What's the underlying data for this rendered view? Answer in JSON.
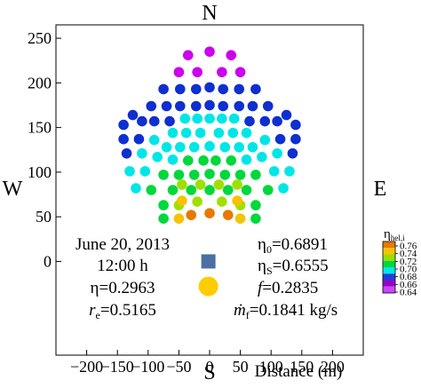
{
  "chart_data": {
    "type": "scatter",
    "title": "",
    "xlabel": "Distance (m)",
    "ylabel": "",
    "xlim": [
      -250,
      250
    ],
    "ylim": [
      -105,
      265
    ],
    "xticks": [
      -200,
      -150,
      -100,
      -50,
      0,
      50,
      100,
      150,
      200
    ],
    "yticks": [
      0,
      50,
      100,
      150,
      200,
      250
    ],
    "compass": {
      "north": "N",
      "south": "S",
      "west": "W",
      "east": "E"
    },
    "info_left": {
      "date": "June 20, 2013",
      "time": "12:00 h",
      "eta_label": "η=0.2963",
      "re_sym": "r",
      "re_sub": "e",
      "re_val": "=0.5165"
    },
    "info_right": {
      "eta0_sym": "η",
      "eta0_sub": "0",
      "eta0_val": "=0.6891",
      "etaS_sym": "η",
      "etaS_sub": "S",
      "etaS_val": "=0.6555",
      "f_sym": "f",
      "f_val": "=0.2835",
      "mf_sym": "ṁ",
      "mf_sub": "f",
      "mf_val": "=0.1841 kg/s"
    },
    "markers": [
      {
        "name": "receiver",
        "shape": "square",
        "x": -2,
        "y": 0,
        "color": "#4a6fa5"
      },
      {
        "name": "sun",
        "shape": "circle",
        "x": -2,
        "y": -28,
        "color": "#ffcc00"
      }
    ],
    "colorbar": {
      "title_sym": "η",
      "title_sub": "hel,i",
      "ticks": [
        "0.76",
        "0.74",
        "0.72",
        "0.70",
        "0.68",
        "0.66",
        "0.64"
      ],
      "bands": [
        "#e87800",
        "#f5c400",
        "#9bdc00",
        "#00d83c",
        "#00e8e8",
        "#1f3fd8",
        "#9a00c8",
        "#cc44ff"
      ]
    },
    "point_groups": [
      {
        "efficiency": 0.645,
        "color": "#cc00ee",
        "points": [
          [
            -35,
            231
          ],
          [
            0,
            235
          ],
          [
            35,
            231
          ],
          [
            -50,
            212
          ],
          [
            -20,
            212
          ],
          [
            20,
            212
          ],
          [
            50,
            212
          ]
        ]
      },
      {
        "efficiency": 0.66,
        "color": "#0f2fd0",
        "points": [
          [
            -75,
            193
          ],
          [
            -48,
            193
          ],
          [
            -22,
            193
          ],
          [
            0,
            195
          ],
          [
            22,
            193
          ],
          [
            48,
            193
          ],
          [
            75,
            193
          ],
          [
            -95,
            174
          ],
          [
            -70,
            174
          ],
          [
            -48,
            174
          ],
          [
            -22,
            174
          ],
          [
            0,
            175
          ],
          [
            22,
            174
          ],
          [
            48,
            174
          ],
          [
            70,
            174
          ],
          [
            95,
            174
          ],
          [
            -125,
            164
          ],
          [
            -110,
            157
          ],
          [
            -90,
            157
          ],
          [
            -65,
            157
          ],
          [
            65,
            157
          ],
          [
            90,
            157
          ],
          [
            110,
            157
          ],
          [
            125,
            164
          ],
          [
            -140,
            153
          ],
          [
            140,
            153
          ],
          [
            -140,
            137
          ],
          [
            -115,
            137
          ],
          [
            115,
            137
          ],
          [
            140,
            137
          ],
          [
            -135,
            121
          ],
          [
            135,
            121
          ]
        ]
      },
      {
        "efficiency": 0.68,
        "color": "#00e6e6",
        "points": [
          [
            -40,
            160
          ],
          [
            -20,
            160
          ],
          [
            0,
            160
          ],
          [
            20,
            160
          ],
          [
            40,
            160
          ],
          [
            -60,
            144
          ],
          [
            -38,
            144
          ],
          [
            -15,
            144
          ],
          [
            15,
            144
          ],
          [
            38,
            144
          ],
          [
            60,
            144
          ],
          [
            -90,
            136
          ],
          [
            -70,
            128
          ],
          [
            -48,
            128
          ],
          [
            -25,
            128
          ],
          [
            0,
            129
          ],
          [
            25,
            128
          ],
          [
            48,
            128
          ],
          [
            70,
            128
          ],
          [
            90,
            136
          ],
          [
            -110,
            121
          ],
          [
            -85,
            117
          ],
          [
            -60,
            114
          ],
          [
            60,
            114
          ],
          [
            85,
            117
          ],
          [
            110,
            121
          ],
          [
            -130,
            101
          ],
          [
            -105,
            101
          ],
          [
            105,
            101
          ],
          [
            130,
            101
          ],
          [
            -120,
            82
          ],
          [
            120,
            82
          ]
        ]
      },
      {
        "efficiency": 0.7,
        "color": "#00d83c",
        "points": [
          [
            -35,
            113
          ],
          [
            -10,
            113
          ],
          [
            10,
            113
          ],
          [
            35,
            113
          ],
          [
            -75,
            97
          ],
          [
            -50,
            97
          ],
          [
            -25,
            97
          ],
          [
            0,
            98
          ],
          [
            25,
            97
          ],
          [
            50,
            97
          ],
          [
            75,
            97
          ],
          [
            -95,
            80
          ],
          [
            -60,
            80
          ],
          [
            -30,
            80
          ],
          [
            0,
            80
          ],
          [
            30,
            80
          ],
          [
            60,
            80
          ],
          [
            95,
            80
          ],
          [
            -75,
            63
          ],
          [
            75,
            63
          ],
          [
            -75,
            48
          ],
          [
            75,
            48
          ]
        ]
      },
      {
        "efficiency": 0.72,
        "color": "#a0e000",
        "points": [
          [
            -45,
            86
          ],
          [
            -15,
            86
          ],
          [
            15,
            86
          ],
          [
            45,
            86
          ],
          [
            -20,
            67
          ],
          [
            20,
            67
          ],
          [
            -50,
            63
          ],
          [
            50,
            63
          ]
        ]
      },
      {
        "efficiency": 0.74,
        "color": "#f5c400",
        "points": [
          [
            -50,
            48
          ],
          [
            50,
            48
          ],
          [
            -45,
            68
          ],
          [
            45,
            68
          ]
        ]
      },
      {
        "efficiency": 0.76,
        "color": "#e87800",
        "points": [
          [
            -30,
            52
          ],
          [
            0,
            54
          ],
          [
            30,
            52
          ]
        ]
      }
    ]
  }
}
